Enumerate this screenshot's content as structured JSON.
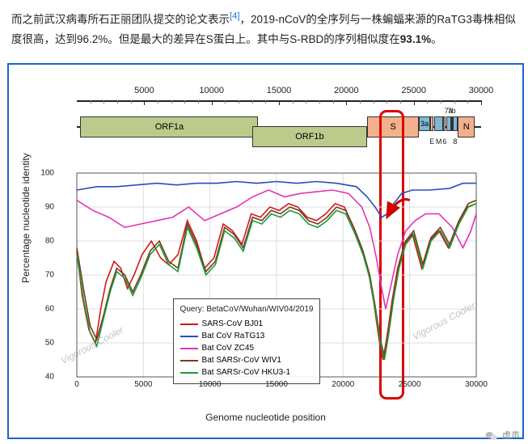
{
  "prose": {
    "text1": "而之前武汉病毒所石正丽团队提交的论文表示",
    "ref": "[4]",
    "text2": "，2019-nCoV的全序列与一株蝙蝠来源的RaTG3毒株相似度很高，达到96.2%。但是最大的差异在S蛋白上。其中与S-RBD的序列相似度在",
    "bold": "93.1%",
    "text3": "。"
  },
  "ruler": {
    "min": 0,
    "max": 30000,
    "ticks": [
      5000,
      10000,
      15000,
      20000,
      25000,
      30000
    ],
    "minors": [
      1000,
      2000,
      3000,
      4000,
      6000,
      7000,
      8000,
      9000,
      11000,
      12000,
      13000,
      14000,
      16000,
      17000,
      18000,
      19000,
      21000,
      22000,
      23000,
      24000,
      26000,
      27000,
      28000,
      29000
    ]
  },
  "genes": [
    {
      "name": "ORF1a",
      "start": 265,
      "end": 13468,
      "color": "#bccb8c",
      "row": 0,
      "label": "ORF1a"
    },
    {
      "name": "ORF1b",
      "start": 13000,
      "end": 21555,
      "color": "#bccb8c",
      "row": 1,
      "label": "ORF1b"
    },
    {
      "name": "S",
      "start": 21563,
      "end": 25384,
      "color": "#f2b18c",
      "row": 0,
      "label": "S"
    },
    {
      "name": "3a",
      "start": 25393,
      "end": 26220,
      "color": "#7fb8d6",
      "row": 0,
      "label": "3a"
    },
    {
      "name": "E",
      "start": 26245,
      "end": 26472,
      "color": "#f2b18c",
      "row": 0,
      "label": "",
      "below": "E"
    },
    {
      "name": "M",
      "start": 26523,
      "end": 27191,
      "color": "#7fb8d6",
      "row": 0,
      "label": "",
      "below": "M"
    },
    {
      "name": "6",
      "start": 27202,
      "end": 27387,
      "color": "#f2b18c",
      "row": 0,
      "label": "",
      "below": "6"
    },
    {
      "name": "7a",
      "start": 27394,
      "end": 27759,
      "color": "#7fb8d6",
      "row": 0,
      "label": "",
      "top": "7a"
    },
    {
      "name": "7b",
      "start": 27756,
      "end": 27887,
      "color": "#bccb8c",
      "row": 0,
      "label": "",
      "top": "7b"
    },
    {
      "name": "8",
      "start": 27894,
      "end": 28259,
      "color": "#7fb8d6",
      "row": 0,
      "label": "",
      "below": "8"
    },
    {
      "name": "N",
      "start": 28274,
      "end": 29533,
      "color": "#f2b18c",
      "row": 0,
      "label": "N"
    }
  ],
  "highlight": {
    "start": 22500,
    "end": 24000
  },
  "chart": {
    "xmin": 0,
    "xmax": 30000,
    "ymin": 40,
    "ymax": 100,
    "xticks": [
      0,
      5000,
      10000,
      15000,
      20000,
      25000,
      30000
    ],
    "yticks": [
      40,
      50,
      60,
      70,
      80,
      90,
      100
    ],
    "xlabel": "Genome nucleotide position",
    "ylabel": "Percentage nucleotide identity",
    "grid_color": "#dddddd",
    "axis_color": "#555555",
    "bg": "#ffffff",
    "query_label": "Query: BetaCoV/Wuhan/WIV04/2019",
    "watermark": "Vigorous Cooler",
    "arrow_color": "#d00000",
    "series": [
      {
        "name": "SARS-CoV BJ01",
        "color": "#d01818",
        "width": 1.6,
        "pts": [
          [
            0,
            77
          ],
          [
            400,
            64
          ],
          [
            900,
            54
          ],
          [
            1400,
            50
          ],
          [
            1800,
            60
          ],
          [
            2200,
            68
          ],
          [
            2800,
            74
          ],
          [
            3300,
            72
          ],
          [
            3800,
            66
          ],
          [
            4300,
            70
          ],
          [
            4900,
            76
          ],
          [
            5600,
            80
          ],
          [
            6300,
            75
          ],
          [
            6900,
            73
          ],
          [
            7600,
            76
          ],
          [
            8300,
            86
          ],
          [
            9000,
            80
          ],
          [
            9600,
            72
          ],
          [
            10300,
            75
          ],
          [
            11000,
            85
          ],
          [
            11700,
            83
          ],
          [
            12400,
            79
          ],
          [
            13100,
            88
          ],
          [
            13800,
            87
          ],
          [
            14500,
            90
          ],
          [
            15200,
            89
          ],
          [
            15900,
            91
          ],
          [
            16600,
            90
          ],
          [
            17300,
            87
          ],
          [
            18000,
            86
          ],
          [
            18700,
            88
          ],
          [
            19400,
            91
          ],
          [
            20100,
            90
          ],
          [
            20800,
            84
          ],
          [
            21400,
            78
          ],
          [
            21900,
            71
          ],
          [
            22300,
            62
          ],
          [
            22700,
            51
          ],
          [
            23000,
            45
          ],
          [
            23300,
            52
          ],
          [
            23700,
            63
          ],
          [
            24100,
            72
          ],
          [
            24600,
            79
          ],
          [
            25200,
            82
          ],
          [
            25900,
            72
          ],
          [
            26500,
            80
          ],
          [
            27200,
            83
          ],
          [
            27900,
            78
          ],
          [
            28600,
            85
          ],
          [
            29300,
            90
          ],
          [
            30000,
            91
          ]
        ]
      },
      {
        "name": "Bat CoV RaTG13",
        "color": "#2a4bbd",
        "width": 1.6,
        "pts": [
          [
            0,
            95
          ],
          [
            1500,
            96
          ],
          [
            3000,
            96
          ],
          [
            4500,
            96.5
          ],
          [
            6000,
            97
          ],
          [
            7500,
            96.5
          ],
          [
            9000,
            97
          ],
          [
            10500,
            97
          ],
          [
            12000,
            97.5
          ],
          [
            13500,
            97
          ],
          [
            15000,
            97.5
          ],
          [
            16500,
            97
          ],
          [
            18000,
            97.5
          ],
          [
            19500,
            97
          ],
          [
            21000,
            96
          ],
          [
            21800,
            93
          ],
          [
            22400,
            90
          ],
          [
            22900,
            87
          ],
          [
            23300,
            88
          ],
          [
            23800,
            91
          ],
          [
            24400,
            94
          ],
          [
            25200,
            95
          ],
          [
            26500,
            95
          ],
          [
            28000,
            95.5
          ],
          [
            29000,
            97
          ],
          [
            30000,
            97
          ]
        ]
      },
      {
        "name": "Bat CoV ZC45",
        "color": "#e235b5",
        "width": 1.6,
        "pts": [
          [
            0,
            92
          ],
          [
            1200,
            89
          ],
          [
            2400,
            87
          ],
          [
            3600,
            84
          ],
          [
            4800,
            85
          ],
          [
            6000,
            86
          ],
          [
            7200,
            87
          ],
          [
            8400,
            90
          ],
          [
            9600,
            86
          ],
          [
            10800,
            88
          ],
          [
            12000,
            90
          ],
          [
            13200,
            93
          ],
          [
            14400,
            95
          ],
          [
            15600,
            93
          ],
          [
            16800,
            94
          ],
          [
            18000,
            94.5
          ],
          [
            19200,
            95
          ],
          [
            20400,
            94
          ],
          [
            21400,
            90
          ],
          [
            22000,
            84
          ],
          [
            22500,
            75
          ],
          [
            22900,
            66
          ],
          [
            23200,
            60
          ],
          [
            23600,
            67
          ],
          [
            24100,
            76
          ],
          [
            24700,
            83
          ],
          [
            25400,
            86
          ],
          [
            26200,
            88
          ],
          [
            27200,
            88
          ],
          [
            28200,
            84
          ],
          [
            29000,
            78
          ],
          [
            29600,
            83
          ],
          [
            30000,
            88
          ]
        ]
      },
      {
        "name": "Bat SARSr-CoV WIV1",
        "color": "#7a3a1e",
        "width": 1.6,
        "pts": [
          [
            0,
            78
          ],
          [
            500,
            66
          ],
          [
            1000,
            55
          ],
          [
            1500,
            51
          ],
          [
            2000,
            58
          ],
          [
            2500,
            66
          ],
          [
            3000,
            72
          ],
          [
            3600,
            70
          ],
          [
            4200,
            65
          ],
          [
            4800,
            70
          ],
          [
            5500,
            77
          ],
          [
            6200,
            80
          ],
          [
            6900,
            74
          ],
          [
            7600,
            72
          ],
          [
            8300,
            85
          ],
          [
            9000,
            79
          ],
          [
            9700,
            71
          ],
          [
            10400,
            74
          ],
          [
            11100,
            84
          ],
          [
            11800,
            82
          ],
          [
            12500,
            78
          ],
          [
            13200,
            87
          ],
          [
            13900,
            86
          ],
          [
            14600,
            89
          ],
          [
            15300,
            88
          ],
          [
            16000,
            90
          ],
          [
            16700,
            89
          ],
          [
            17400,
            86
          ],
          [
            18100,
            85
          ],
          [
            18800,
            87
          ],
          [
            19500,
            90
          ],
          [
            20200,
            89
          ],
          [
            20900,
            83
          ],
          [
            21500,
            77
          ],
          [
            22000,
            70
          ],
          [
            22400,
            61
          ],
          [
            22800,
            51
          ],
          [
            23100,
            46
          ],
          [
            23400,
            53
          ],
          [
            23800,
            64
          ],
          [
            24200,
            73
          ],
          [
            24700,
            80
          ],
          [
            25300,
            83
          ],
          [
            26000,
            73
          ],
          [
            26600,
            81
          ],
          [
            27300,
            84
          ],
          [
            28000,
            79
          ],
          [
            28700,
            86
          ],
          [
            29400,
            91
          ],
          [
            30000,
            92
          ]
        ]
      },
      {
        "name": "Bat SARSr-CoV HKU3-1",
        "color": "#1a9a3a",
        "width": 1.6,
        "pts": [
          [
            0,
            76
          ],
          [
            500,
            63
          ],
          [
            1000,
            53
          ],
          [
            1500,
            49
          ],
          [
            2000,
            57
          ],
          [
            2500,
            65
          ],
          [
            3000,
            71
          ],
          [
            3600,
            69
          ],
          [
            4200,
            64
          ],
          [
            4800,
            69
          ],
          [
            5500,
            76
          ],
          [
            6200,
            79
          ],
          [
            6900,
            73
          ],
          [
            7600,
            71
          ],
          [
            8300,
            84
          ],
          [
            9000,
            78
          ],
          [
            9700,
            70
          ],
          [
            10400,
            73
          ],
          [
            11100,
            83
          ],
          [
            11800,
            81
          ],
          [
            12500,
            77
          ],
          [
            13200,
            86
          ],
          [
            13900,
            85
          ],
          [
            14600,
            88
          ],
          [
            15300,
            87
          ],
          [
            16000,
            89
          ],
          [
            16700,
            88
          ],
          [
            17400,
            85
          ],
          [
            18100,
            84
          ],
          [
            18800,
            86
          ],
          [
            19500,
            89
          ],
          [
            20200,
            88
          ],
          [
            20900,
            82
          ],
          [
            21500,
            76
          ],
          [
            22000,
            69
          ],
          [
            22400,
            60
          ],
          [
            22800,
            50
          ],
          [
            23100,
            45
          ],
          [
            23400,
            52
          ],
          [
            23800,
            63
          ],
          [
            24200,
            72
          ],
          [
            24700,
            79
          ],
          [
            25300,
            82
          ],
          [
            26000,
            72
          ],
          [
            26600,
            80
          ],
          [
            27300,
            83
          ],
          [
            28000,
            78
          ],
          [
            28700,
            85
          ],
          [
            29400,
            90
          ],
          [
            30000,
            91
          ]
        ]
      }
    ]
  },
  "source": {
    "label": "虚声",
    "icon": "wechat"
  }
}
